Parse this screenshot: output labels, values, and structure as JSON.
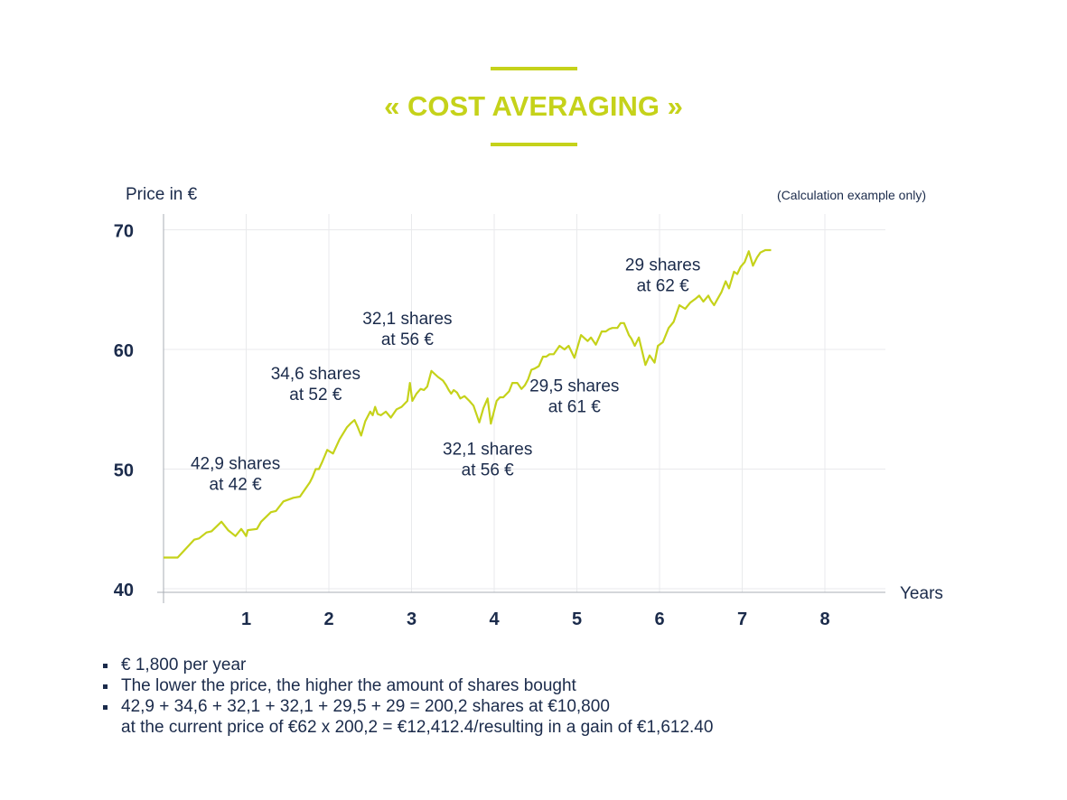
{
  "header": {
    "title": "« COST AVERAGING »"
  },
  "note": "(Calculation example only)",
  "chart_data": {
    "type": "line",
    "title": "",
    "ylabel": "Price in €",
    "xlabel": "Years",
    "xlim": [
      0,
      8.8
    ],
    "ylim": [
      40,
      71.5
    ],
    "xticks": [
      1,
      2,
      3,
      4,
      5,
      6,
      7,
      8
    ],
    "yticks": [
      40,
      50,
      60,
      70
    ],
    "grid": true,
    "line_color": "#c5d21a",
    "series": [
      {
        "x": [
          0,
          0.17,
          0.37,
          0.43,
          0.52,
          0.58,
          0.7,
          0.78,
          0.87,
          0.94,
          0.97,
          1.0,
          1.02,
          1.13,
          1.18,
          1.3,
          1.36,
          1.45,
          1.57,
          1.65,
          1.77,
          1.8,
          1.84,
          1.88,
          1.92,
          1.98,
          2.05,
          2.13,
          2.22,
          2.26,
          2.31,
          2.35,
          2.39,
          2.44,
          2.5,
          2.53,
          2.56,
          2.59,
          2.63,
          2.69,
          2.75,
          2.82,
          2.88,
          2.95,
          2.98,
          3.01,
          3.06,
          3.11,
          3.15,
          3.19,
          3.24,
          3.32,
          3.38,
          3.42,
          3.45,
          3.48,
          3.51,
          3.55,
          3.59,
          3.64,
          3.7,
          3.75,
          3.82,
          3.87,
          3.92,
          3.96,
          4.03,
          4.07,
          4.11,
          4.18,
          4.22,
          4.28,
          4.33,
          4.37,
          4.41,
          4.45,
          4.49,
          4.54,
          4.59,
          4.63,
          4.67,
          4.72,
          4.79,
          4.85,
          4.9,
          4.97,
          5.05,
          5.13,
          5.17,
          5.23,
          5.3,
          5.35,
          5.39,
          5.43,
          5.46,
          5.49,
          5.53,
          5.57,
          5.63,
          5.66,
          5.7,
          5.75,
          5.83,
          5.88,
          5.94,
          5.98,
          6.04,
          6.11,
          6.17,
          6.24,
          6.31,
          6.37,
          6.43,
          6.48,
          6.53,
          6.59,
          6.62,
          6.66,
          6.7,
          6.75,
          6.8,
          6.84,
          6.9,
          6.94,
          6.98,
          7.03,
          7.08,
          7.13,
          7.18,
          7.22,
          7.28,
          7.35
        ],
        "values": [
          42.6,
          42.6,
          44.1,
          44.2,
          44.7,
          44.8,
          45.6,
          44.9,
          44.4,
          45.0,
          44.7,
          44.4,
          44.9,
          45.0,
          45.6,
          46.4,
          46.5,
          47.3,
          47.6,
          47.7,
          48.9,
          49.3,
          50.0,
          50.0,
          50.6,
          51.6,
          51.3,
          52.5,
          53.5,
          53.8,
          54.1,
          53.5,
          52.8,
          54.0,
          54.8,
          54.5,
          55.2,
          54.6,
          54.5,
          54.8,
          54.3,
          55.0,
          55.2,
          55.7,
          57.2,
          55.7,
          56.3,
          56.7,
          56.6,
          56.9,
          58.2,
          57.7,
          57.4,
          57.0,
          56.6,
          56.3,
          56.6,
          56.4,
          55.9,
          56.1,
          55.7,
          55.3,
          53.9,
          55.1,
          55.9,
          53.8,
          55.7,
          56.0,
          56.0,
          56.5,
          57.2,
          57.2,
          56.7,
          57.0,
          57.5,
          58.3,
          58.4,
          58.6,
          59.4,
          59.4,
          59.6,
          59.6,
          60.3,
          60.0,
          60.3,
          59.3,
          61.2,
          60.7,
          61.0,
          60.4,
          61.5,
          61.5,
          61.7,
          61.8,
          61.8,
          61.8,
          62.2,
          62.2,
          61.2,
          60.9,
          60.3,
          61.0,
          58.7,
          59.5,
          58.9,
          60.3,
          60.6,
          61.8,
          62.3,
          63.7,
          63.4,
          63.9,
          64.2,
          64.5,
          64.0,
          64.5,
          64.1,
          63.7,
          64.2,
          64.8,
          65.7,
          65.1,
          66.5,
          66.3,
          66.9,
          67.3,
          68.2,
          67.0,
          67.7,
          68.1,
          68.3,
          68.3
        ]
      }
    ],
    "annotations": [
      {
        "line1": "42,9 shares",
        "line2": "at 42 €",
        "x": 0.87,
        "y": 50.0
      },
      {
        "line1": "34,6 shares",
        "line2": "at 52 €",
        "x": 1.84,
        "y": 57.5
      },
      {
        "line1": "32,1 shares",
        "line2": "at 56 €",
        "x": 2.95,
        "y": 62.1
      },
      {
        "line1": "32,1 shares",
        "line2": "at 56 €",
        "x": 3.92,
        "y": 51.2
      },
      {
        "line1": "29,5 shares",
        "line2": "at 61 €",
        "x": 4.97,
        "y": 56.5
      },
      {
        "line1": "29 shares",
        "line2": "at 62 €",
        "x": 6.04,
        "y": 66.6
      }
    ]
  },
  "bullets": [
    "€ 1,800 per year",
    "The lower the price, the higher the amount of shares bought",
    "42,9 + 34,6 + 32,1 + 32,1 + 29,5 + 29 = 200,2 shares at €10,800",
    "at the current price of €62 x 200,2 = €12,412.4/resulting in a gain of €1,612.40"
  ]
}
